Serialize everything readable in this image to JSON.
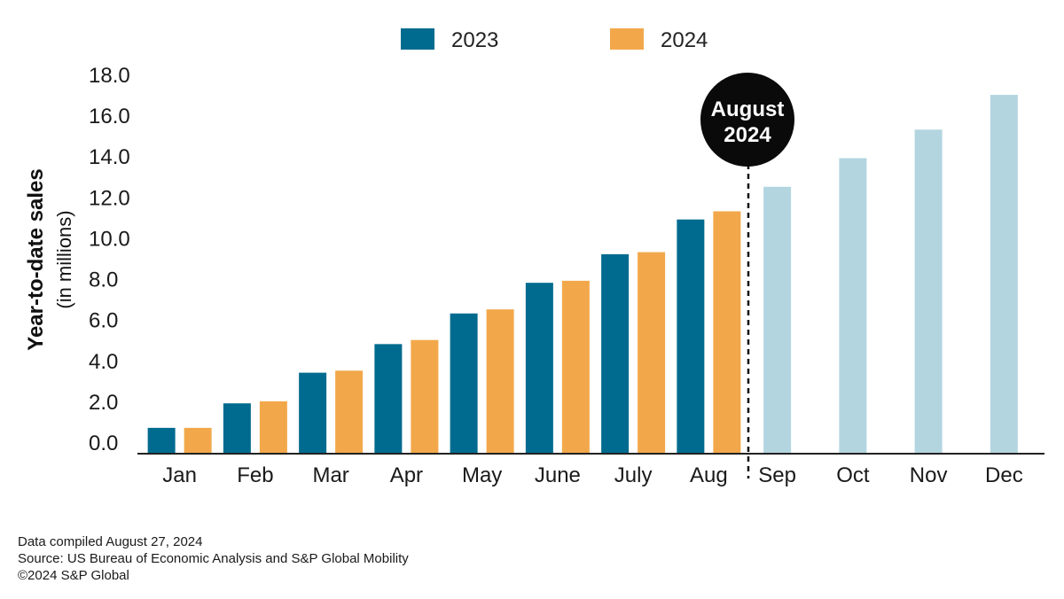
{
  "chart_data": {
    "type": "bar",
    "categories": [
      "Jan",
      "Feb",
      "Mar",
      "Apr",
      "May",
      "June",
      "July",
      "Aug",
      "Sep",
      "Oct",
      "Nov",
      "Dec"
    ],
    "series": [
      {
        "name": "2023",
        "color": "#006b8f",
        "values": [
          0.7,
          1.9,
          3.4,
          4.8,
          6.3,
          7.8,
          9.2,
          10.9,
          null,
          null,
          null,
          null
        ]
      },
      {
        "name": "2024",
        "color": "#f2a84a",
        "values": [
          0.7,
          2.0,
          3.5,
          5.0,
          6.5,
          7.9,
          9.3,
          11.3,
          null,
          null,
          null,
          null
        ]
      },
      {
        "name": "2023 (Sep–Dec)",
        "color": "#b3d5e0",
        "legend": false,
        "values": [
          null,
          null,
          null,
          null,
          null,
          null,
          null,
          null,
          12.5,
          13.9,
          15.3,
          17.0
        ]
      }
    ],
    "xlabel": "",
    "ylabel": "Year-to-date sales",
    "ylabel_sub": "(in millions)",
    "ylim": [
      0,
      18
    ],
    "yticks": [
      "0.0",
      "2.0",
      "4.0",
      "6.0",
      "8.0",
      "10.0",
      "12.0",
      "14.0",
      "16.0",
      "18.0"
    ],
    "legend": [
      "2023",
      "2024"
    ],
    "annotation": {
      "line1": "August",
      "line2": "2024",
      "after_category": "Aug"
    }
  },
  "footer": {
    "line1": "Data compiled August 27, 2024",
    "line2": "Source: US Bureau of Economic Analysis and S&P Global Mobility",
    "line3": "©2024 S&P Global"
  }
}
